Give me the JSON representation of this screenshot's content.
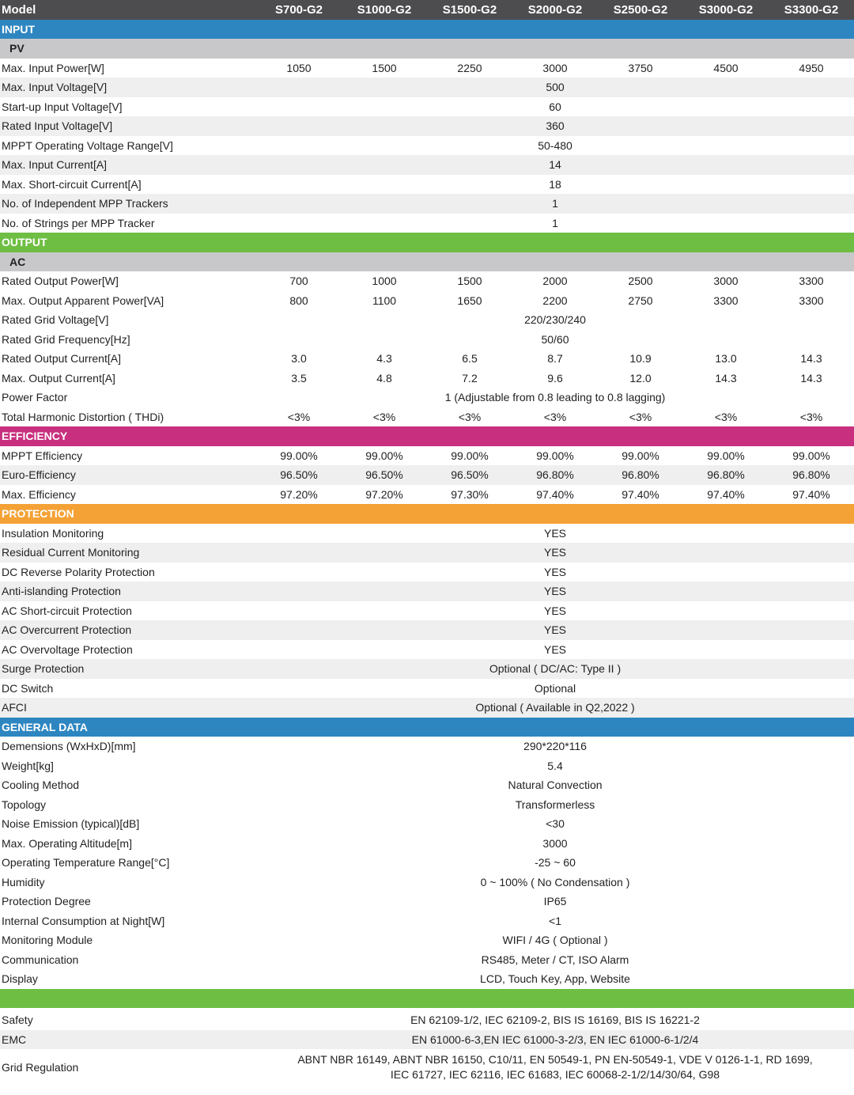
{
  "models": [
    "S700-G2",
    "S1000-G2",
    "S1500-G2",
    "S2000-G2",
    "S2500-G2",
    "S3000-G2",
    "S3300-G2"
  ],
  "header_label": "Model",
  "colors": {
    "header": "#4d4d4f",
    "input": "#2e86c1",
    "output": "#6fbe44",
    "efficiency": "#c8307f",
    "protection": "#f4a236",
    "general": "#2e86c1",
    "certification": "#6fbe44",
    "sub": "#c8c8ca",
    "shade": "#efeff0"
  },
  "sections": {
    "input": "INPUT",
    "pv": "PV",
    "output": "OUTPUT",
    "ac": "AC",
    "efficiency": "EFFICIENCY",
    "protection": "PROTECTION",
    "general": "GENERAL DATA",
    "certification": ""
  },
  "rows": {
    "max_input_power": {
      "label": "Max. Input Power[W]",
      "values": [
        "1050",
        "1500",
        "2250",
        "3000",
        "3750",
        "4500",
        "4950"
      ]
    },
    "max_input_voltage": {
      "label": "Max. Input Voltage[V]",
      "value": "500"
    },
    "startup_input_voltage": {
      "label": "Start-up Input Voltage[V]",
      "value": "60"
    },
    "rated_input_voltage": {
      "label": "Rated Input Voltage[V]",
      "value": "360"
    },
    "mppt_range": {
      "label": "MPPT Operating Voltage Range[V]",
      "value": "50-480"
    },
    "max_input_current": {
      "label": "Max. Input Current[A]",
      "value": "14"
    },
    "max_short_circuit": {
      "label": "Max. Short-circuit Current[A]",
      "value": "18"
    },
    "mpp_trackers": {
      "label": "No. of Independent MPP Trackers",
      "value": "1"
    },
    "strings_per_tracker": {
      "label": "No. of Strings per MPP Tracker",
      "value": "1"
    },
    "rated_output_power": {
      "label": "Rated Output Power[W]",
      "values": [
        "700",
        "1000",
        "1500",
        "2000",
        "2500",
        "3000",
        "3300"
      ]
    },
    "max_apparent_power": {
      "label": "Max. Output Apparent Power[VA]",
      "values": [
        "800",
        "1100",
        "1650",
        "2200",
        "2750",
        "3300",
        "3300"
      ]
    },
    "rated_grid_voltage": {
      "label": "Rated Grid Voltage[V]",
      "value": "220/230/240"
    },
    "rated_grid_frequency": {
      "label": "Rated Grid Frequency[Hz]",
      "value": "50/60"
    },
    "rated_output_current": {
      "label": "Rated Output Current[A]",
      "values": [
        "3.0",
        "4.3",
        "6.5",
        "8.7",
        "10.9",
        "13.0",
        "14.3"
      ]
    },
    "max_output_current": {
      "label": "Max. Output Current[A]",
      "values": [
        "3.5",
        "4.8",
        "7.2",
        "9.6",
        "12.0",
        "14.3",
        "14.3"
      ]
    },
    "power_factor": {
      "label": "Power Factor",
      "value": "1 (Adjustable from 0.8 leading to 0.8 lagging)"
    },
    "thdi": {
      "label": "Total Harmonic Distortion ( THDi)",
      "values": [
        "<3%",
        "<3%",
        "<3%",
        "<3%",
        "<3%",
        "<3%",
        "<3%"
      ]
    },
    "mppt_efficiency": {
      "label": "MPPT Efficiency",
      "values": [
        "99.00%",
        "99.00%",
        "99.00%",
        "99.00%",
        "99.00%",
        "99.00%",
        "99.00%"
      ]
    },
    "euro_efficiency": {
      "label": "Euro-Efficiency",
      "values": [
        "96.50%",
        "96.50%",
        "96.50%",
        "96.80%",
        "96.80%",
        "96.80%",
        "96.80%"
      ]
    },
    "max_efficiency": {
      "label": "Max. Efficiency",
      "values": [
        "97.20%",
        "97.20%",
        "97.30%",
        "97.40%",
        "97.40%",
        "97.40%",
        "97.40%"
      ]
    },
    "insulation": {
      "label": "Insulation Monitoring",
      "value": "YES"
    },
    "residual_current": {
      "label": "Residual Current Monitoring",
      "value": "YES"
    },
    "dc_reverse": {
      "label": "DC Reverse Polarity Protection",
      "value": "YES"
    },
    "anti_islanding": {
      "label": "Anti-islanding Protection",
      "value": "YES"
    },
    "ac_short_circuit": {
      "label": "AC Short-circuit Protection",
      "value": "YES"
    },
    "ac_overcurrent": {
      "label": "AC Overcurrent Protection",
      "value": "YES"
    },
    "ac_overvoltage": {
      "label": "AC Overvoltage Protection",
      "value": "YES"
    },
    "surge": {
      "label": "Surge Protection",
      "value": "Optional ( DC/AC: Type II )"
    },
    "dc_switch": {
      "label": "DC Switch",
      "value": "Optional"
    },
    "afci": {
      "label": "AFCI",
      "value": "Optional ( Available in Q2,2022 )"
    },
    "dimensions": {
      "label": "Demensions (WxHxD)[mm]",
      "value": "290*220*116"
    },
    "weight": {
      "label": "Weight[kg]",
      "value": "5.4"
    },
    "cooling": {
      "label": "Cooling Method",
      "value": "Natural Convection"
    },
    "topology": {
      "label": "Topology",
      "value": "Transformerless"
    },
    "noise": {
      "label": "Noise Emission (typical)[dB]",
      "value": "<30"
    },
    "altitude": {
      "label": "Max. Operating Altitude[m]",
      "value": "3000"
    },
    "temperature": {
      "label": "Operating Temperature Range[°C]",
      "value": "-25 ~ 60"
    },
    "humidity": {
      "label": "Humidity",
      "value": "0 ~ 100% ( No Condensation )"
    },
    "protection_degree": {
      "label": "Protection Degree",
      "value": "IP65"
    },
    "night_consumption": {
      "label": "Internal Consumption at Night[W]",
      "value": "<1"
    },
    "monitoring": {
      "label": "Monitoring Module",
      "value": "WIFI / 4G ( Optional )"
    },
    "communication": {
      "label": "Communication",
      "value": "RS485, Meter / CT, ISO Alarm"
    },
    "display": {
      "label": "Display",
      "value": "LCD, Touch Key, App, Website"
    },
    "safety": {
      "label": "Safety",
      "value": "EN 62109-1/2, IEC 62109-2, BIS IS 16169, BIS IS 16221-2"
    },
    "emc": {
      "label": "EMC",
      "value": "EN 61000-6-3,EN IEC 61000-3-2/3, EN IEC 61000-6-1/2/4"
    },
    "grid_regulation": {
      "label": "Grid Regulation",
      "line1": "ABNT NBR 16149,  ABNT NBR 16150, C10/11, EN 50549-1, PN EN-50549-1, VDE V 0126-1-1,  RD 1699,",
      "line2": "IEC 61727,  IEC 62116,  IEC 61683,  IEC 60068-2-1/2/14/30/64, G98"
    }
  }
}
